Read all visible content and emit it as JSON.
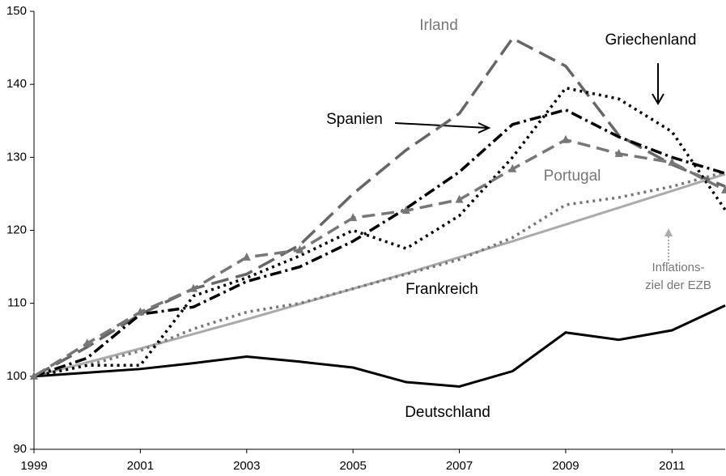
{
  "chart_data": {
    "type": "line",
    "x": [
      1999,
      2000,
      2001,
      2002,
      2003,
      2004,
      2005,
      2006,
      2007,
      2008,
      2009,
      2010,
      2011,
      2012
    ],
    "xlim": [
      1999,
      2012
    ],
    "xticks": [
      1999,
      2001,
      2003,
      2005,
      2007,
      2009,
      2011
    ],
    "ylim": [
      90,
      150
    ],
    "yticks": [
      90,
      100,
      110,
      120,
      130,
      140,
      150
    ],
    "annotations": [
      "Inflations-",
      "ziel der EZB"
    ],
    "series": [
      {
        "name": "Deutschland",
        "color": "#000000",
        "dash": "solid",
        "values": [
          100,
          100.5,
          101,
          101.8,
          102.7,
          102,
          101.2,
          99.2,
          98.6,
          100.7,
          106,
          105,
          106.3,
          109.7
        ]
      },
      {
        "color": "#aaaaaa",
        "dash": "solid",
        "values": [
          100,
          101.9,
          103.8,
          105.8,
          107.8,
          109.9,
          112,
          114.1,
          116.3,
          118.5,
          120.8,
          123.1,
          125.4,
          127.7
        ]
      },
      {
        "name": "Frankreich",
        "color": "#777777",
        "dash": "dotted",
        "values": [
          100,
          101.5,
          103.5,
          106.5,
          108.8,
          110,
          112,
          114,
          116,
          119,
          123.5,
          124.5,
          126,
          128
        ]
      },
      {
        "name": "Irland",
        "color": "#666666",
        "dash": "longdash",
        "values": [
          100,
          104,
          108.5,
          112,
          114,
          118,
          125,
          131,
          136,
          146.3,
          142.5,
          133,
          129,
          126
        ]
      },
      {
        "name": "Griechenland",
        "color": "#000000",
        "dash": "dotted",
        "values": [
          100,
          101.5,
          101.5,
          111,
          113.5,
          116.5,
          120,
          117.5,
          122,
          130,
          139.5,
          138,
          133.5,
          122.8
        ]
      },
      {
        "name": "Spanien",
        "color": "#000000",
        "dash": "dashdot",
        "values": [
          100,
          102.5,
          108.5,
          109.5,
          113,
          115,
          118.5,
          123,
          128,
          134.5,
          136.5,
          132.8,
          130,
          127.8
        ]
      },
      {
        "name": "Portugal",
        "color": "#777777",
        "dash": "dash",
        "marker": "triangle",
        "values": [
          100,
          104.5,
          108.8,
          112,
          116.3,
          117.3,
          121.7,
          122.7,
          124.2,
          128.4,
          132.4,
          130.5,
          129.3,
          125.5
        ]
      }
    ]
  }
}
